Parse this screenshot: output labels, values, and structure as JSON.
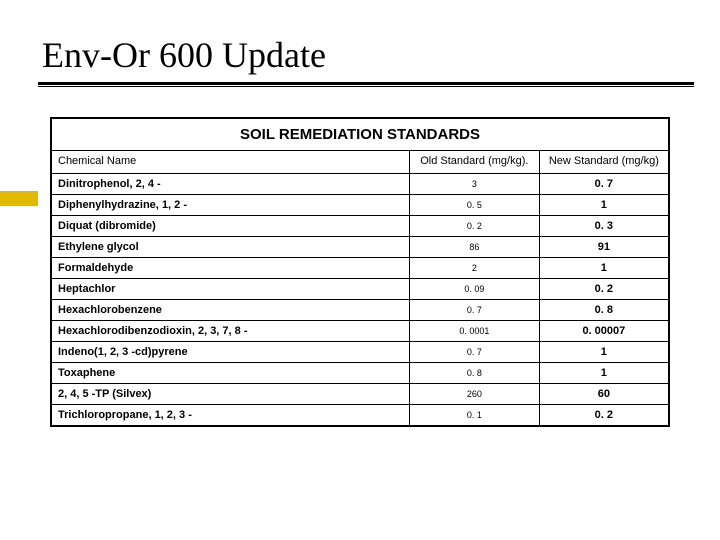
{
  "accent_color": "#e3b800",
  "title": "Env-Or 600 Update",
  "table": {
    "title": "SOIL REMEDIATION STANDARDS",
    "columns": [
      "Chemical Name",
      "Old Standard (mg/kg).",
      "New Standard (mg/kg)"
    ],
    "rows": [
      [
        "Dinitrophenol, 2, 4 -",
        "3",
        "0. 7"
      ],
      [
        "Diphenylhydrazine, 1, 2 -",
        "0. 5",
        "1"
      ],
      [
        "Diquat (dibromide)",
        "0. 2",
        "0. 3"
      ],
      [
        "Ethylene glycol",
        "86",
        "91"
      ],
      [
        "Formaldehyde",
        "2",
        "1"
      ],
      [
        "Heptachlor",
        "0. 09",
        "0. 2"
      ],
      [
        "Hexachlorobenzene",
        "0. 7",
        "0. 8"
      ],
      [
        "Hexachlorodibenzodioxin, 2, 3, 7, 8 -",
        "0. 0001",
        "0. 00007"
      ],
      [
        "Indeno(1, 2, 3 -cd)pyrene",
        "0. 7",
        "1"
      ],
      [
        "Toxaphene",
        "0. 8",
        "1"
      ],
      [
        "2, 4, 5 -TP (Silvex)",
        "260",
        "60"
      ],
      [
        "Trichloropropane, 1, 2, 3 -",
        "0. 1",
        "0. 2"
      ]
    ]
  }
}
